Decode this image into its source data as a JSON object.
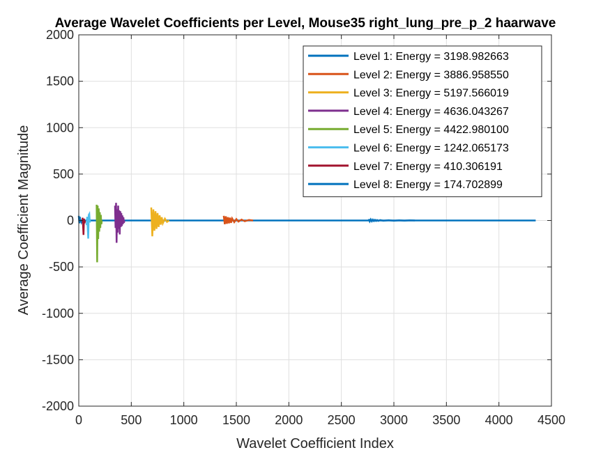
{
  "chart_data": {
    "type": "line",
    "title": "Average Wavelet Coefficients per Level, Mouse35 right_lung_pre_p_2 haarwave",
    "xlabel": "Wavelet Coefficient Index",
    "ylabel": "Average Coefficient Magnitude",
    "xlim": [
      0,
      4500
    ],
    "ylim": [
      -2000,
      2000
    ],
    "xticks": [
      0,
      500,
      1000,
      1500,
      2000,
      2500,
      3000,
      3500,
      4000,
      4500
    ],
    "yticks": [
      -2000,
      -1500,
      -1000,
      -500,
      0,
      500,
      1000,
      1500,
      2000
    ],
    "xtick_labels": [
      "0",
      "500",
      "1000",
      "1500",
      "2000",
      "2500",
      "3000",
      "3500",
      "4000",
      "4500"
    ],
    "ytick_labels": [
      "-2000",
      "-1500",
      "-1000",
      "-500",
      "0",
      "500",
      "1000",
      "1500",
      "2000"
    ],
    "grid": true,
    "legend_position": "top-right",
    "series": [
      {
        "name": "Level 1: Energy = 3198.982663",
        "color": "#0072BD",
        "x": [
          2760,
          2770,
          2780,
          2790,
          2800,
          2810,
          2820,
          2830,
          2840,
          2850,
          2870,
          2900,
          2950,
          3000,
          3050,
          3100,
          3150,
          3200
        ],
        "y": [
          15,
          -10,
          12,
          -8,
          9,
          -6,
          7,
          -5,
          5,
          -4,
          4,
          -3,
          3,
          -3,
          2,
          -2,
          2,
          0
        ]
      },
      {
        "name": "Level 2: Energy = 3886.958550",
        "color": "#D95319",
        "x": [
          1380,
          1390,
          1400,
          1410,
          1420,
          1430,
          1440,
          1450,
          1460,
          1480,
          1500,
          1520,
          1550,
          1580,
          1620,
          1660
        ],
        "y": [
          50,
          -40,
          45,
          -35,
          35,
          -30,
          30,
          -25,
          22,
          -18,
          15,
          -12,
          10,
          -8,
          5,
          0
        ]
      },
      {
        "name": "Level 3: Energy = 5197.566019",
        "color": "#EDB120",
        "x": [
          690,
          700,
          710,
          720,
          730,
          740,
          750,
          760,
          770,
          780,
          790,
          800,
          820,
          840,
          860
        ],
        "y": [
          140,
          -170,
          120,
          -110,
          100,
          -90,
          80,
          -70,
          55,
          -45,
          35,
          -30,
          20,
          -15,
          0
        ]
      },
      {
        "name": "Level 4: Energy = 4636.043267",
        "color": "#7E2F8E",
        "x": [
          345,
          350,
          355,
          360,
          365,
          370,
          375,
          380,
          385,
          390,
          395,
          400,
          405,
          410,
          415,
          420,
          425,
          430,
          435
        ],
        "y": [
          160,
          -80,
          190,
          -240,
          120,
          -130,
          160,
          -90,
          110,
          -150,
          100,
          -70,
          80,
          -60,
          55,
          -40,
          35,
          -25,
          0
        ]
      },
      {
        "name": "Level 5: Energy = 4422.980100",
        "color": "#77AC30",
        "x": [
          170,
          175,
          180,
          185,
          190,
          195,
          200,
          205,
          210,
          215,
          220
        ],
        "y": [
          170,
          -450,
          160,
          -200,
          130,
          -120,
          90,
          -80,
          60,
          -40,
          0
        ]
      },
      {
        "name": "Level 6: Energy = 1242.065173",
        "color": "#4DBEEE",
        "x": [
          75,
          80,
          85,
          90,
          95,
          100,
          105,
          110
        ],
        "y": [
          -50,
          40,
          -80,
          -195,
          60,
          70,
          -20,
          0
        ]
      },
      {
        "name": "Level 7: Energy = 410.306191",
        "color": "#A2142F",
        "x": [
          35,
          40,
          45,
          50,
          55,
          60
        ],
        "y": [
          30,
          -40,
          -155,
          20,
          -30,
          0
        ]
      },
      {
        "name": "Level 8: Energy = 174.702899",
        "color": "#0072BD",
        "x": [
          0,
          5,
          10,
          15,
          20,
          25,
          30,
          4350
        ],
        "y": [
          50,
          -30,
          40,
          -20,
          10,
          -15,
          0,
          0
        ]
      }
    ]
  }
}
